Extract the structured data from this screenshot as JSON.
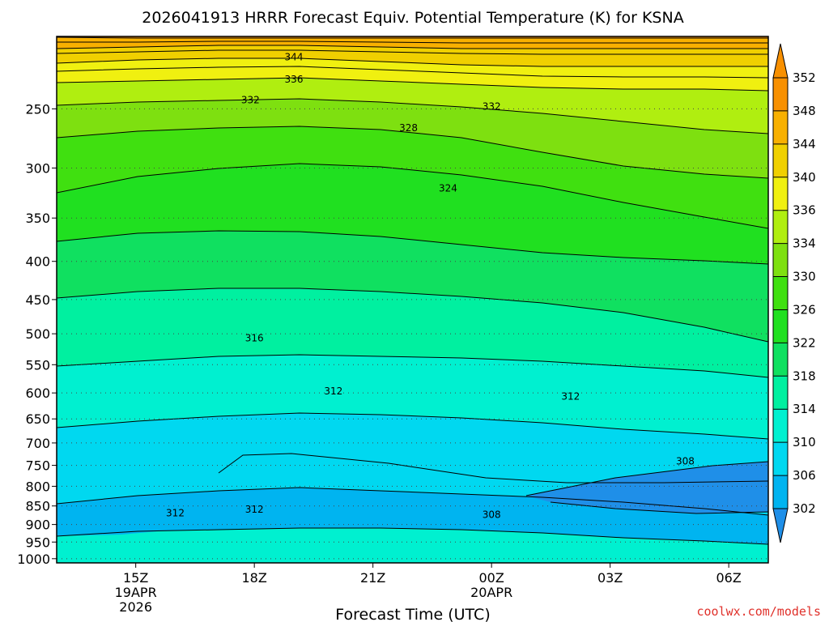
{
  "chart_data": {
    "type": "contour",
    "title": "2026041913 HRRR Forecast Equiv. Potential Temperature (K) for KSNA",
    "xlabel": "Forecast Time (UTC)",
    "ylabel": "",
    "y_scale": "log",
    "y_inverted": true,
    "y_range": [
      200,
      1013
    ],
    "pressure_ticks": [
      "250",
      "300",
      "350",
      "400",
      "450",
      "500",
      "550",
      "600",
      "650",
      "700",
      "750",
      "800",
      "850",
      "900",
      "950",
      "1000"
    ],
    "x_ticks": [
      {
        "label": "15Z",
        "sublabel": "19APR",
        "sublabel2": "2026",
        "hour": 2
      },
      {
        "label": "18Z",
        "sublabel": "",
        "sublabel2": "",
        "hour": 5
      },
      {
        "label": "21Z",
        "sublabel": "",
        "sublabel2": "",
        "hour": 8
      },
      {
        "label": "00Z",
        "sublabel": "20APR",
        "sublabel2": "",
        "hour": 11
      },
      {
        "label": "03Z",
        "sublabel": "",
        "sublabel2": "",
        "hour": 14
      },
      {
        "label": "06Z",
        "sublabel": "",
        "sublabel2": "",
        "hour": 17
      }
    ],
    "x_range_hours": [
      0,
      18
    ],
    "colorbar": {
      "labels": [
        "302",
        "306",
        "310",
        "314",
        "318",
        "322",
        "326",
        "330",
        "334",
        "336",
        "340",
        "344",
        "348",
        "352"
      ],
      "colors": [
        "#1f8fe8",
        "#00b4f0",
        "#00d8f0",
        "#00f0d0",
        "#00f0a0",
        "#10e060",
        "#20e020",
        "#40e010",
        "#7ee010",
        "#b0ee10",
        "#f0f010",
        "#f0d000",
        "#f8b000",
        "#f89000"
      ]
    },
    "contour_labels": [
      {
        "text": "344",
        "hour": 6.0,
        "p": 213
      },
      {
        "text": "336",
        "hour": 6.0,
        "p": 228
      },
      {
        "text": "332",
        "hour": 4.9,
        "p": 243
      },
      {
        "text": "332",
        "hour": 11.0,
        "p": 248
      },
      {
        "text": "328",
        "hour": 8.9,
        "p": 265
      },
      {
        "text": "324",
        "hour": 9.9,
        "p": 319
      },
      {
        "text": "316",
        "hour": 5.0,
        "p": 506
      },
      {
        "text": "312",
        "hour": 7.0,
        "p": 596
      },
      {
        "text": "312",
        "hour": 13.0,
        "p": 606
      },
      {
        "text": "308",
        "hour": 15.9,
        "p": 740
      },
      {
        "text": "312",
        "hour": 3.0,
        "p": 868
      },
      {
        "text": "312",
        "hour": 5.0,
        "p": 858
      },
      {
        "text": "308",
        "hour": 11.0,
        "p": 872
      }
    ],
    "surface_pressure": 1013,
    "colors": {
      "ground": "#a0522d",
      "grid": "#444444",
      "contour": "#000000"
    }
  },
  "credit": "coolwx.com/models"
}
